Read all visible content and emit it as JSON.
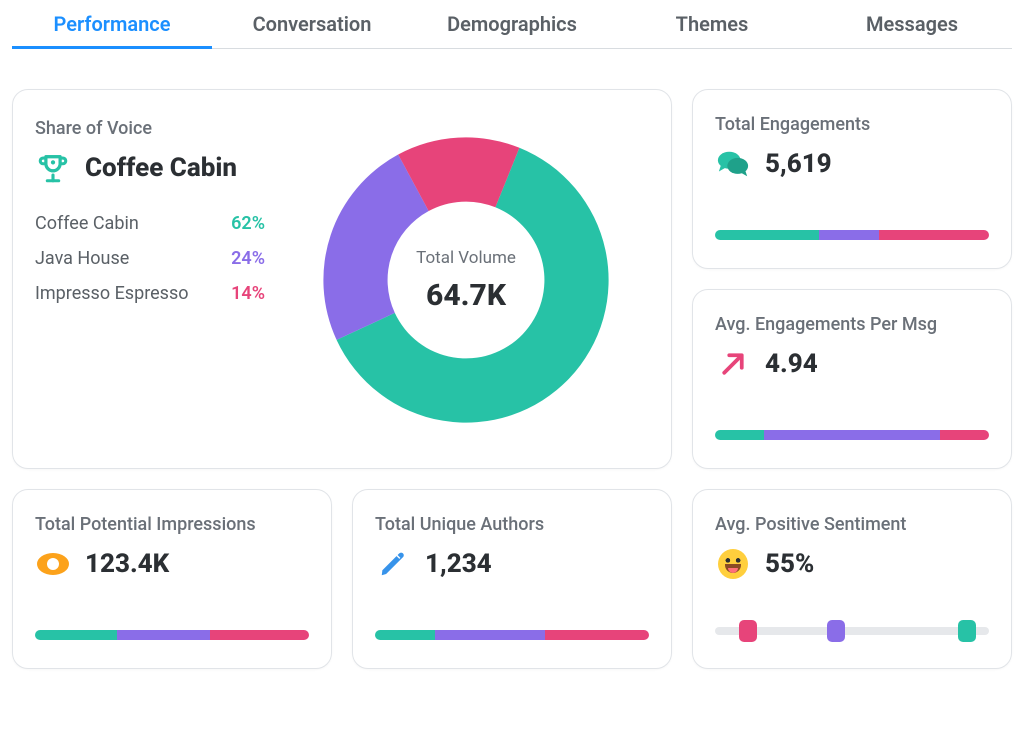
{
  "colors": {
    "teal": "#27c2a6",
    "purple": "#8a6de8",
    "pink": "#e7447a",
    "orange": "#fca21b",
    "blue_pencil": "#3793ea",
    "tab_active": "#1b8fff",
    "text_muted": "#6a7078",
    "border": "#e1e4e8",
    "track": "#e6e8eb"
  },
  "tabs": [
    {
      "label": "Performance",
      "active": true
    },
    {
      "label": "Conversation",
      "active": false
    },
    {
      "label": "Demographics",
      "active": false
    },
    {
      "label": "Themes",
      "active": false
    },
    {
      "label": "Messages",
      "active": false
    }
  ],
  "share_of_voice": {
    "title": "Share of Voice",
    "winner": "Coffee Cabin",
    "center_label": "Total Volume",
    "center_value": "64.7K",
    "donut": {
      "type": "donut",
      "inner_radius_pct": 55,
      "slices": [
        {
          "label": "Coffee Cabin",
          "pct": 62,
          "color": "#27c2a6",
          "pct_label": "62%"
        },
        {
          "label": "Java House",
          "pct": 24,
          "color": "#8a6de8",
          "pct_label": "24%"
        },
        {
          "label": "Impresso Espresso",
          "pct": 14,
          "color": "#e7447a",
          "pct_label": "14%"
        }
      ]
    }
  },
  "engagements": {
    "title": "Total Engagements",
    "value": "5,619",
    "bar_segments": [
      {
        "color": "#27c2a6",
        "pct": 38
      },
      {
        "color": "#8a6de8",
        "pct": 22
      },
      {
        "color": "#e7447a",
        "pct": 40
      }
    ]
  },
  "avg_engagements": {
    "title": "Avg. Engagements Per Msg",
    "value": "4.94",
    "bar_segments": [
      {
        "color": "#27c2a6",
        "pct": 18
      },
      {
        "color": "#8a6de8",
        "pct": 64
      },
      {
        "color": "#e7447a",
        "pct": 18
      }
    ]
  },
  "impressions": {
    "title": "Total Potential Impressions",
    "value": "123.4K",
    "bar_segments": [
      {
        "color": "#27c2a6",
        "pct": 30
      },
      {
        "color": "#8a6de8",
        "pct": 34
      },
      {
        "color": "#e7447a",
        "pct": 36
      }
    ]
  },
  "authors": {
    "title": "Total Unique Authors",
    "value": "1,234",
    "bar_segments": [
      {
        "color": "#27c2a6",
        "pct": 22
      },
      {
        "color": "#8a6de8",
        "pct": 40
      },
      {
        "color": "#e7447a",
        "pct": 38
      }
    ]
  },
  "sentiment": {
    "title": "Avg. Positive Sentiment",
    "value": "55%",
    "thumbs": [
      {
        "color": "#e7447a",
        "pos_pct": 12
      },
      {
        "color": "#8a6de8",
        "pos_pct": 44
      },
      {
        "color": "#27c2a6",
        "pos_pct": 92
      }
    ]
  }
}
